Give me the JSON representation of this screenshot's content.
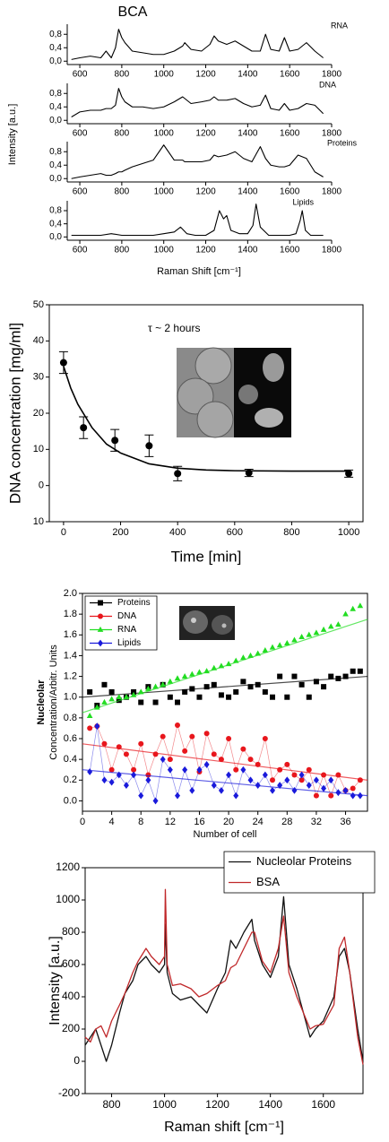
{
  "figure": {
    "title": "BCA",
    "ylabel": "Intensity  [a.u.]",
    "xlabel": "Raman Shift  [cm⁻¹]"
  },
  "chart_data": [
    {
      "type": "line",
      "label": "RNA",
      "color": "#000000",
      "xlim": [
        540,
        1800
      ],
      "ylim": [
        -0.1,
        1.1
      ],
      "xticks": [
        600,
        800,
        1000,
        1200,
        1400,
        1600,
        1800
      ],
      "yticks": [
        {
          "value": 0,
          "label": "0,0"
        },
        {
          "value": 0.4,
          "label": "0,4"
        },
        {
          "value": 0.8,
          "label": "0,8"
        }
      ],
      "x": [
        560,
        600,
        650,
        700,
        725,
        750,
        770,
        785,
        800,
        815,
        850,
        900,
        950,
        1000,
        1050,
        1090,
        1100,
        1130,
        1180,
        1220,
        1240,
        1260,
        1300,
        1340,
        1380,
        1420,
        1460,
        1485,
        1510,
        1550,
        1575,
        1600,
        1640,
        1680,
        1720,
        1760
      ],
      "values": [
        0.05,
        0.1,
        0.15,
        0.1,
        0.3,
        0.1,
        0.4,
        0.95,
        0.7,
        0.55,
        0.3,
        0.25,
        0.2,
        0.2,
        0.3,
        0.45,
        0.55,
        0.35,
        0.3,
        0.5,
        0.75,
        0.6,
        0.5,
        0.6,
        0.45,
        0.3,
        0.3,
        0.8,
        0.35,
        0.3,
        0.7,
        0.3,
        0.35,
        0.55,
        0.3,
        0.1
      ]
    },
    {
      "type": "line",
      "label": "DNA",
      "color": "#000000",
      "xlim": [
        540,
        1800
      ],
      "ylim": [
        -0.1,
        1.1
      ],
      "xticks": [
        600,
        800,
        1000,
        1200,
        1400,
        1600,
        1800
      ],
      "yticks": [
        {
          "value": 0,
          "label": "0,0"
        },
        {
          "value": 0.4,
          "label": "0,4"
        },
        {
          "value": 0.8,
          "label": "0,8"
        }
      ],
      "x": [
        560,
        600,
        650,
        700,
        725,
        750,
        770,
        785,
        800,
        815,
        850,
        900,
        950,
        1000,
        1050,
        1090,
        1100,
        1130,
        1180,
        1220,
        1240,
        1260,
        1300,
        1340,
        1380,
        1420,
        1460,
        1485,
        1510,
        1550,
        1575,
        1600,
        1640,
        1680,
        1720,
        1760
      ],
      "values": [
        0.1,
        0.25,
        0.3,
        0.3,
        0.35,
        0.35,
        0.45,
        0.95,
        0.7,
        0.55,
        0.4,
        0.4,
        0.35,
        0.4,
        0.55,
        0.7,
        0.65,
        0.5,
        0.55,
        0.6,
        0.7,
        0.6,
        0.6,
        0.65,
        0.5,
        0.4,
        0.45,
        0.75,
        0.35,
        0.3,
        0.5,
        0.3,
        0.35,
        0.5,
        0.45,
        0.2
      ]
    },
    {
      "type": "line",
      "label": "Proteins",
      "color": "#000000",
      "xlim": [
        540,
        1800
      ],
      "ylim": [
        -0.1,
        1.1
      ],
      "xticks": [
        600,
        800,
        1000,
        1200,
        1400,
        1600,
        1800
      ],
      "yticks": [
        {
          "value": 0,
          "label": "0,0"
        },
        {
          "value": 0.4,
          "label": "0,4"
        },
        {
          "value": 0.8,
          "label": "0,8"
        }
      ],
      "x": [
        560,
        600,
        650,
        700,
        725,
        750,
        770,
        785,
        800,
        815,
        850,
        900,
        950,
        1000,
        1050,
        1090,
        1100,
        1130,
        1180,
        1220,
        1240,
        1260,
        1300,
        1340,
        1380,
        1420,
        1460,
        1485,
        1510,
        1550,
        1575,
        1600,
        1640,
        1680,
        1720,
        1760
      ],
      "values": [
        0,
        0.05,
        0.1,
        0.15,
        0.1,
        0.1,
        0.15,
        0.2,
        0.2,
        0.25,
        0.35,
        0.45,
        0.55,
        1.0,
        0.55,
        0.55,
        0.5,
        0.5,
        0.5,
        0.55,
        0.7,
        0.65,
        0.7,
        0.8,
        0.6,
        0.5,
        0.95,
        0.6,
        0.4,
        0.35,
        0.35,
        0.4,
        0.7,
        0.6,
        0.2,
        0.05
      ]
    },
    {
      "type": "line",
      "label": "Lipids",
      "color": "#000000",
      "xlim": [
        540,
        1800
      ],
      "ylim": [
        -0.1,
        1.1
      ],
      "xticks": [
        600,
        800,
        1000,
        1200,
        1400,
        1600,
        1800
      ],
      "yticks": [
        {
          "value": 0,
          "label": "0,0"
        },
        {
          "value": 0.4,
          "label": "0,4"
        },
        {
          "value": 0.8,
          "label": "0,8"
        }
      ],
      "x": [
        560,
        600,
        700,
        750,
        800,
        850,
        900,
        950,
        1000,
        1050,
        1080,
        1110,
        1150,
        1200,
        1240,
        1265,
        1285,
        1300,
        1320,
        1360,
        1400,
        1425,
        1440,
        1460,
        1500,
        1550,
        1600,
        1630,
        1650,
        1660,
        1675,
        1700,
        1760
      ],
      "values": [
        0.05,
        0.05,
        0.05,
        0.1,
        0.05,
        0.05,
        0.05,
        0.05,
        0.1,
        0.15,
        0.3,
        0.1,
        0.05,
        0.05,
        0.2,
        0.8,
        0.55,
        0.65,
        0.2,
        0.1,
        0.1,
        0.35,
        1.0,
        0.3,
        0.05,
        0.05,
        0.05,
        0.1,
        0.5,
        0.8,
        0.2,
        0.05,
        0.05
      ]
    },
    {
      "type": "scatter",
      "annotation": "τ ~ 2 hours",
      "xlabel": "Time [min]",
      "ylabel": "DNA concentration [mg/ml]",
      "color": "#000000",
      "marker": "circle",
      "xlim": [
        -50,
        1050
      ],
      "ylim": [
        -10,
        50
      ],
      "xticks": [
        0,
        200,
        400,
        600,
        800,
        1000
      ],
      "yticks": [
        {
          "value": -10,
          "label": "10"
        },
        0,
        10,
        20,
        30,
        40,
        50
      ],
      "x": [
        0,
        70,
        180,
        300,
        400,
        650,
        1000
      ],
      "values": [
        34,
        16,
        12.5,
        11,
        3.3,
        3.5,
        3.3
      ],
      "errors": [
        3,
        3,
        3,
        3,
        2,
        1,
        1
      ],
      "fit": {
        "x": [
          0,
          25,
          50,
          100,
          150,
          200,
          300,
          400,
          500,
          600,
          800,
          1000
        ],
        "values": [
          33,
          27,
          22.5,
          16,
          11.5,
          9,
          6,
          4.8,
          4.3,
          4.1,
          4,
          4
        ]
      }
    },
    {
      "type": "scatter",
      "xlabel": "Number of cell",
      "ylabel": [
        "Nucleolar",
        "Concentration/Arbitr. Units"
      ],
      "legend": "upper left",
      "xlim": [
        0,
        39
      ],
      "ylim": [
        -0.1,
        2.0
      ],
      "xticks": [
        0,
        4,
        8,
        12,
        16,
        20,
        24,
        28,
        32,
        36
      ],
      "yticks": [
        {
          "value": 0,
          "label": "0.0"
        },
        0.2,
        0.4,
        0.6,
        0.8,
        {
          "value": 1,
          "label": "1.0"
        },
        1.2,
        1.4,
        1.6,
        1.8,
        {
          "value": 2,
          "label": "2.0"
        }
      ],
      "x": [
        1,
        2,
        3,
        4,
        5,
        6,
        7,
        8,
        9,
        10,
        11,
        12,
        13,
        14,
        15,
        16,
        17,
        18,
        19,
        20,
        21,
        22,
        23,
        24,
        25,
        26,
        27,
        28,
        29,
        30,
        31,
        32,
        33,
        34,
        35,
        36,
        37,
        38
      ],
      "series": [
        {
          "name": "Proteins",
          "color": "#000000",
          "marker": "square",
          "fit": [
            1.0,
            1.2
          ],
          "values": [
            1.05,
            0.92,
            1.12,
            1.05,
            0.97,
            1.0,
            1.05,
            0.95,
            1.1,
            0.95,
            1.12,
            1.0,
            0.95,
            1.05,
            1.08,
            1.0,
            1.1,
            1.12,
            1.02,
            1.0,
            1.05,
            1.15,
            1.1,
            1.12,
            1.05,
            1.0,
            1.2,
            1.0,
            1.2,
            1.12,
            1.0,
            1.15,
            1.1,
            1.2,
            1.18,
            1.2,
            1.25,
            1.25
          ]
        },
        {
          "name": "DNA",
          "color": "#e8161c",
          "marker": "circle",
          "connect": true,
          "fit": [
            0.55,
            0.2
          ],
          "values": [
            0.7,
            0.72,
            0.55,
            0.3,
            0.52,
            0.45,
            0.3,
            0.55,
            0.25,
            0.45,
            0.62,
            0.4,
            0.73,
            0.48,
            0.62,
            0.28,
            0.65,
            0.45,
            0.4,
            0.6,
            0.3,
            0.5,
            0.4,
            0.35,
            0.6,
            0.2,
            0.3,
            0.35,
            0.25,
            0.2,
            0.3,
            0.05,
            0.25,
            0.05,
            0.25,
            0.1,
            0.12,
            0.2
          ]
        },
        {
          "name": "RNA",
          "color": "#22dd22",
          "marker": "triangle",
          "fit": [
            0.85,
            1.75
          ],
          "values": [
            0.82,
            0.9,
            0.95,
            0.98,
            1.0,
            1.0,
            1.02,
            1.05,
            1.08,
            1.1,
            1.12,
            1.15,
            1.18,
            1.2,
            1.22,
            1.24,
            1.25,
            1.28,
            1.3,
            1.32,
            1.35,
            1.38,
            1.4,
            1.42,
            1.45,
            1.48,
            1.5,
            1.52,
            1.55,
            1.58,
            1.6,
            1.62,
            1.65,
            1.68,
            1.7,
            1.8,
            1.85,
            1.88
          ]
        },
        {
          "name": "Lipids",
          "color": "#1a1adb",
          "marker": "diamond",
          "connect": true,
          "fit": [
            0.3,
            0.05
          ],
          "values": [
            0.28,
            0.72,
            0.2,
            0.18,
            0.25,
            0.15,
            0.25,
            0.05,
            0.2,
            0.0,
            0.4,
            0.3,
            0.05,
            0.3,
            0.1,
            0.3,
            0.35,
            0.15,
            0.1,
            0.25,
            0.05,
            0.3,
            0.2,
            0.15,
            0.25,
            0.1,
            0.15,
            0.2,
            0.1,
            0.25,
            0.15,
            0.2,
            0.12,
            0.2,
            0.08,
            0.1,
            0.05,
            0.05
          ]
        }
      ]
    },
    {
      "type": "line",
      "xlabel": "Raman shift [cm⁻¹]",
      "ylabel": "Intensity [a.u.]",
      "legend": "upper right",
      "xlim": [
        700,
        1750
      ],
      "ylim": [
        -200,
        1200
      ],
      "xticks": [
        800,
        1000,
        1200,
        1400,
        1600
      ],
      "yticks": [
        -200,
        0,
        200,
        400,
        600,
        800,
        1000,
        1200
      ],
      "x": [
        700,
        720,
        740,
        760,
        780,
        800,
        830,
        850,
        880,
        900,
        930,
        950,
        980,
        1000,
        1003,
        1010,
        1030,
        1060,
        1100,
        1130,
        1160,
        1200,
        1230,
        1250,
        1270,
        1300,
        1330,
        1340,
        1370,
        1400,
        1430,
        1450,
        1470,
        1500,
        1550,
        1570,
        1600,
        1640,
        1660,
        1680,
        1700,
        1730,
        1750
      ],
      "series": [
        {
          "name": "Nucleolar Proteins",
          "color": "#111111",
          "values": [
            100,
            150,
            200,
            100,
            0,
            100,
            300,
            420,
            500,
            600,
            650,
            600,
            550,
            600,
            850,
            550,
            420,
            380,
            400,
            350,
            300,
            450,
            550,
            750,
            700,
            800,
            880,
            750,
            600,
            520,
            650,
            1020,
            600,
            450,
            150,
            200,
            250,
            400,
            650,
            700,
            550,
            200,
            0
          ]
        },
        {
          "name": "BSA",
          "color": "#c0282a",
          "values": [
            150,
            120,
            200,
            220,
            150,
            250,
            350,
            420,
            550,
            620,
            700,
            650,
            600,
            650,
            1065,
            600,
            470,
            480,
            450,
            400,
            420,
            470,
            500,
            580,
            600,
            700,
            800,
            800,
            620,
            550,
            700,
            900,
            550,
            400,
            200,
            220,
            230,
            350,
            700,
            770,
            550,
            150,
            -20
          ]
        }
      ]
    }
  ]
}
